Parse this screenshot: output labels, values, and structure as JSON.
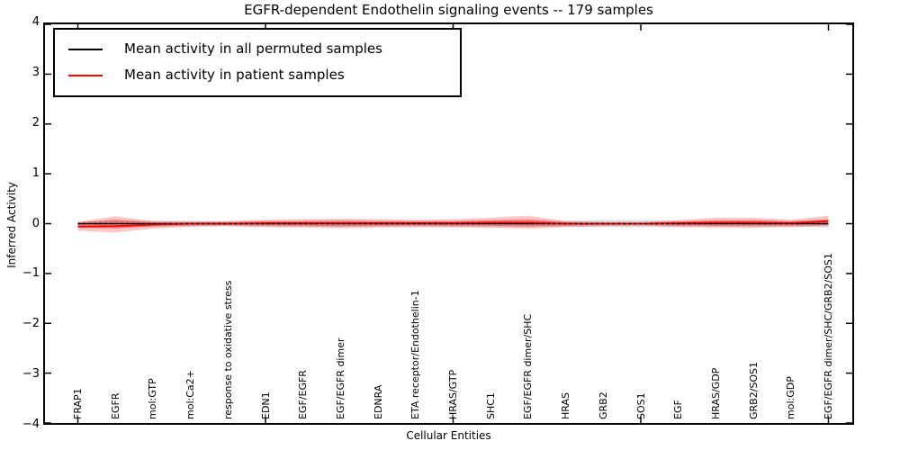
{
  "title": "EGFR-dependent Endothelin signaling events -- 179 samples",
  "axes": {
    "xlabel": "Cellular Entities",
    "ylabel": "Inferred Activity",
    "ytick_labels": [
      "4",
      "3",
      "2",
      "1",
      "0",
      "−1",
      "−2",
      "−3",
      "−4"
    ],
    "ylim": [
      -4,
      4
    ]
  },
  "legend": {
    "items": [
      {
        "label": "Mean activity in all permuted samples",
        "color": "#000000"
      },
      {
        "label": "Mean activity in patient samples",
        "color": "#ff0000"
      }
    ]
  },
  "chart_data": {
    "type": "line",
    "title": "EGFR-dependent Endothelin signaling events -- 179 samples",
    "xlabel": "Cellular Entities",
    "ylabel": "Inferred Activity",
    "ylim": [
      -4,
      4
    ],
    "grid": false,
    "legend_position": "upper left",
    "zero_line_style": "dotted",
    "categories": [
      "FRAP1",
      "EGFR",
      "mol:GTP",
      "mol:Ca2+",
      "response to oxidative stress",
      "EDN1",
      "EGF/EGFR",
      "EGF/EGFR dimer",
      "EDNRA",
      "ETA receptor/Endothelin-1",
      "HRAS/GTP",
      "SHC1",
      "EGF/EGFR dimer/SHC",
      "HRAS",
      "GRB2",
      "SOS1",
      "EGF",
      "HRAS/GDP",
      "GRB2/SOS1",
      "mol:GDP",
      "EGF/EGFR dimer/SHC/GRB2/SOS1"
    ],
    "series": [
      {
        "name": "Mean activity in all permuted samples",
        "color": "#000000",
        "values": [
          0,
          0,
          0,
          0,
          0,
          0,
          0,
          0,
          0,
          0,
          0,
          0,
          0,
          0,
          0,
          0,
          0,
          0,
          0,
          0,
          0
        ],
        "band_upper": [
          0.05,
          0.06,
          0.06,
          0.06,
          0.05,
          0.06,
          0.06,
          0.07,
          0.06,
          0.06,
          0.06,
          0.07,
          0.07,
          0.06,
          0.07,
          0.07,
          0.06,
          0.06,
          0.07,
          0.06,
          0.07
        ],
        "band_lower": [
          -0.05,
          -0.07,
          -0.06,
          -0.06,
          -0.05,
          -0.06,
          -0.06,
          -0.07,
          -0.06,
          -0.06,
          -0.06,
          -0.07,
          -0.07,
          -0.06,
          -0.07,
          -0.07,
          -0.06,
          -0.06,
          -0.07,
          -0.06,
          -0.07
        ]
      },
      {
        "name": "Mean activity in patient samples",
        "color": "#ff0000",
        "values": [
          -0.06,
          -0.05,
          -0.02,
          0,
          0,
          0.01,
          0.01,
          0.01,
          0.01,
          0.01,
          0.01,
          0.02,
          0.02,
          0,
          0,
          0,
          0.01,
          0.02,
          0.02,
          0.01,
          0.05
        ],
        "band_upper": [
          0.03,
          0.15,
          0.05,
          0.04,
          0.05,
          0.08,
          0.09,
          0.1,
          0.09,
          0.08,
          0.09,
          0.12,
          0.16,
          0.05,
          0.03,
          0.03,
          0.07,
          0.12,
          0.12,
          0.08,
          0.16
        ],
        "band_lower": [
          -0.14,
          -0.18,
          -0.1,
          -0.06,
          -0.05,
          -0.07,
          -0.08,
          -0.09,
          -0.08,
          -0.07,
          -0.08,
          -0.08,
          -0.1,
          -0.07,
          -0.05,
          -0.04,
          -0.07,
          -0.08,
          -0.08,
          -0.07,
          -0.05
        ]
      }
    ]
  }
}
